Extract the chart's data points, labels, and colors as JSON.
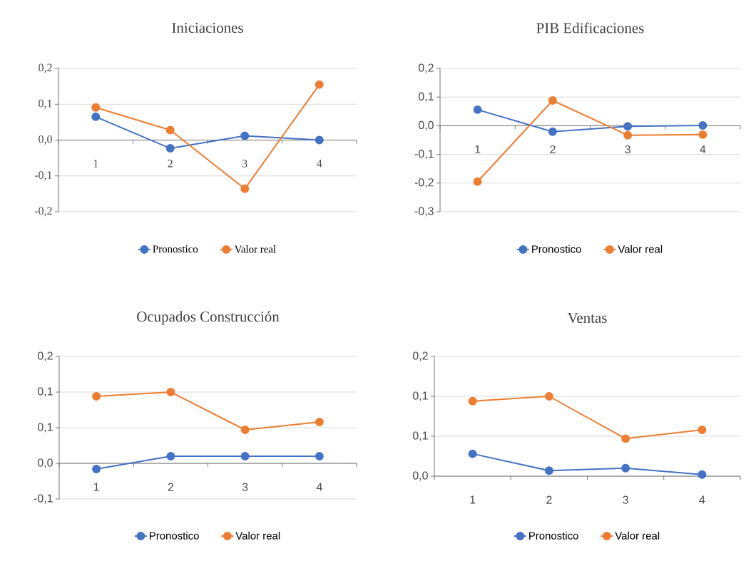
{
  "chart_data": [
    {
      "type": "line",
      "title": "Iniciaciones",
      "categories": [
        "1",
        "2",
        "3",
        "4"
      ],
      "ylim": [
        -0.2,
        0.2
      ],
      "yticks": [
        {
          "value": -0.2,
          "label": "-0,2"
        },
        {
          "value": -0.1,
          "label": "-0,1"
        },
        {
          "value": 0,
          "label": "0,0"
        },
        {
          "value": 0.1,
          "label": "0,1"
        },
        {
          "value": 0.2,
          "label": "0,2"
        }
      ],
      "grid": "y",
      "legend": "bottom",
      "marker": "circle",
      "line_style": "solid",
      "series": [
        {
          "name": "Pronostico",
          "color": "#4472c4",
          "values": [
            0.065,
            -0.023,
            0.012,
            0.0
          ]
        },
        {
          "name": "Valor real",
          "color": "#ed7d31",
          "values": [
            0.091,
            0.028,
            -0.136,
            0.155
          ]
        }
      ]
    },
    {
      "type": "line",
      "title": "PIB Edificaciones",
      "categories": [
        "1",
        "2",
        "3",
        "4"
      ],
      "ylim": [
        -0.3,
        0.2
      ],
      "yticks": [
        {
          "value": -0.3,
          "label": "-0,3"
        },
        {
          "value": -0.2,
          "label": "-0,2"
        },
        {
          "value": -0.1,
          "label": "-0,1"
        },
        {
          "value": 0,
          "label": "0,0"
        },
        {
          "value": 0.1,
          "label": "0,1"
        },
        {
          "value": 0.2,
          "label": "0,2"
        }
      ],
      "grid": "y",
      "legend": "bottom",
      "marker": "circle",
      "line_style": "solid",
      "series": [
        {
          "name": "Pronostico",
          "color": "#4472c4",
          "values": [
            0.056,
            -0.021,
            -0.002,
            0.001
          ]
        },
        {
          "name": "Valor real",
          "color": "#ed7d31",
          "values": [
            -0.195,
            0.088,
            -0.033,
            -0.031
          ]
        }
      ]
    },
    {
      "type": "line",
      "title": "Ocupados Construcción",
      "categories": [
        "1",
        "2",
        "3",
        "4"
      ],
      "ylim": [
        -0.05,
        0.15
      ],
      "yticks": [
        {
          "value": -0.05,
          "label": "-0,1"
        },
        {
          "value": 0,
          "label": "0,0"
        },
        {
          "value": 0.05,
          "label": "0,1"
        },
        {
          "value": 0.1,
          "label": "0,1"
        },
        {
          "value": 0.15,
          "label": "0,2"
        }
      ],
      "grid": "y",
      "legend": "bottom",
      "marker": "circle",
      "line_style": "solid",
      "series": [
        {
          "name": "Pronostico",
          "color": "#4472c4",
          "values": [
            -0.008,
            0.01,
            0.01,
            0.01
          ]
        },
        {
          "name": "Valor real",
          "color": "#ed7d31",
          "values": [
            0.094,
            0.1,
            0.047,
            0.058
          ]
        }
      ]
    },
    {
      "type": "line",
      "title": "Ventas",
      "categories": [
        "1",
        "2",
        "3",
        "4"
      ],
      "ylim": [
        0,
        0.15
      ],
      "yticks": [
        {
          "value": 0,
          "label": "0,0"
        },
        {
          "value": 0.05,
          "label": "0,1"
        },
        {
          "value": 0.1,
          "label": "0,1"
        },
        {
          "value": 0.15,
          "label": "0,2"
        }
      ],
      "grid": "y",
      "legend": "bottom",
      "marker": "circle",
      "line_style": "solid",
      "series": [
        {
          "name": "Pronostico",
          "color": "#4472c4",
          "values": [
            0.028,
            0.007,
            0.01,
            0.002
          ]
        },
        {
          "name": "Valor real",
          "color": "#ed7d31",
          "values": [
            0.094,
            0.1,
            0.047,
            0.058
          ]
        }
      ]
    }
  ]
}
